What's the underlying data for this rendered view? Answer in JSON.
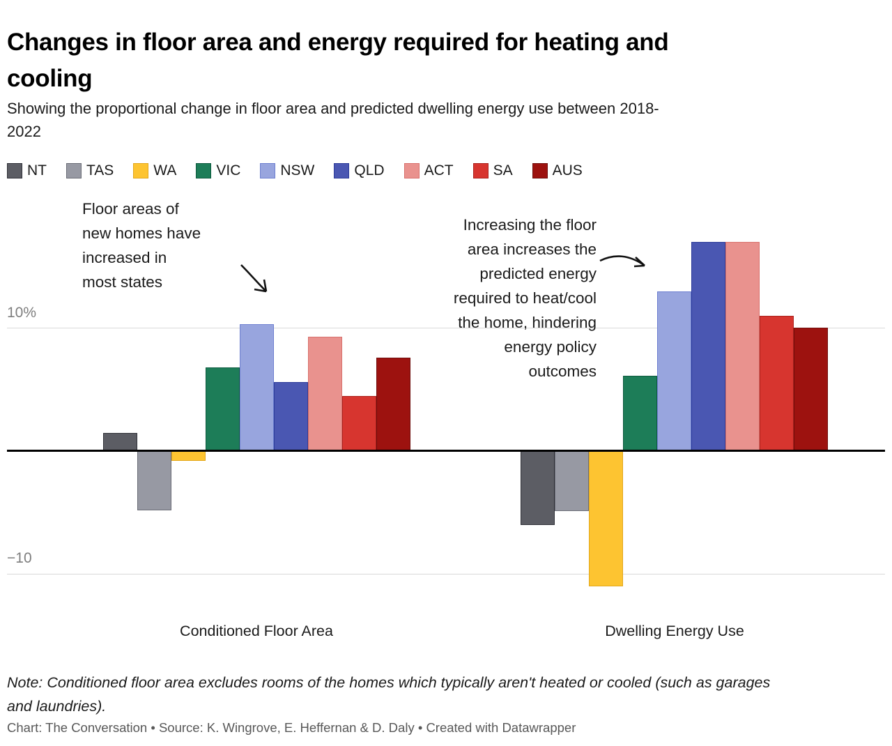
{
  "header": {
    "title_lines": [
      "Changes in floor area and energy required for heating and",
      "cooling"
    ],
    "subtitle_lines": [
      "Showing the proportional change in floor area and predicted dwelling energy use between 2018-",
      "2022"
    ]
  },
  "chart_data": {
    "type": "bar",
    "title": "Changes in floor area and energy required for heating and cooling",
    "subtitle": "Showing the proportional change in floor area and predicted dwelling energy use between 2018-2022",
    "categories": [
      "Conditioned Floor Area",
      "Dwelling Energy Use"
    ],
    "unit": "%",
    "series": [
      {
        "name": "NT",
        "color": "#5c5d64",
        "stroke": "#2f3037",
        "values": [
          1.5,
          -6.0
        ]
      },
      {
        "name": "TAS",
        "color": "#9799a3",
        "stroke": "#6a6c76",
        "values": [
          -4.8,
          -4.9
        ]
      },
      {
        "name": "WA",
        "color": "#fdc431",
        "stroke": "#e2a71c",
        "values": [
          -0.8,
          -11.0
        ]
      },
      {
        "name": "VIC",
        "color": "#1d7d58",
        "stroke": "#0d5a3e",
        "values": [
          6.8,
          6.1
        ]
      },
      {
        "name": "NSW",
        "color": "#98a5de",
        "stroke": "#6d7fd0",
        "values": [
          10.3,
          13.0
        ]
      },
      {
        "name": "QLD",
        "color": "#4a57b2",
        "stroke": "#2c3b99",
        "values": [
          5.6,
          17.0
        ]
      },
      {
        "name": "ACT",
        "color": "#e9928e",
        "stroke": "#d8706c",
        "values": [
          9.3,
          17.0
        ]
      },
      {
        "name": "SA",
        "color": "#d7352f",
        "stroke": "#ab211c",
        "values": [
          4.5,
          11.0
        ]
      },
      {
        "name": "AUS",
        "color": "#9d120f",
        "stroke": "#6f0d0b",
        "values": [
          7.6,
          10.0
        ]
      }
    ],
    "y_axis": {
      "tick_top": "10%",
      "tick_bottom": "−10",
      "gridlines": [
        10,
        0,
        -10
      ],
      "ylim": [
        -12,
        18
      ]
    },
    "legend_position": "top",
    "grid": "horizontal"
  },
  "annotations": {
    "left": {
      "lines": [
        "Floor areas of",
        "new homes have",
        "increased in",
        "most states"
      ]
    },
    "right": {
      "lines": [
        "Increasing the floor",
        "area increases the",
        "predicted energy",
        "required to heat/cool",
        "the home, hindering",
        "energy policy",
        "outcomes"
      ]
    }
  },
  "footer": {
    "note_lines": [
      "Note: Conditioned floor area excludes rooms of the homes which typically aren't heated or cooled (such as garages",
      "and laundries)."
    ],
    "credit": "Chart: The Conversation • Source: K. Wingrove, E. Heffernan & D. Daly • Created with Datawrapper"
  }
}
